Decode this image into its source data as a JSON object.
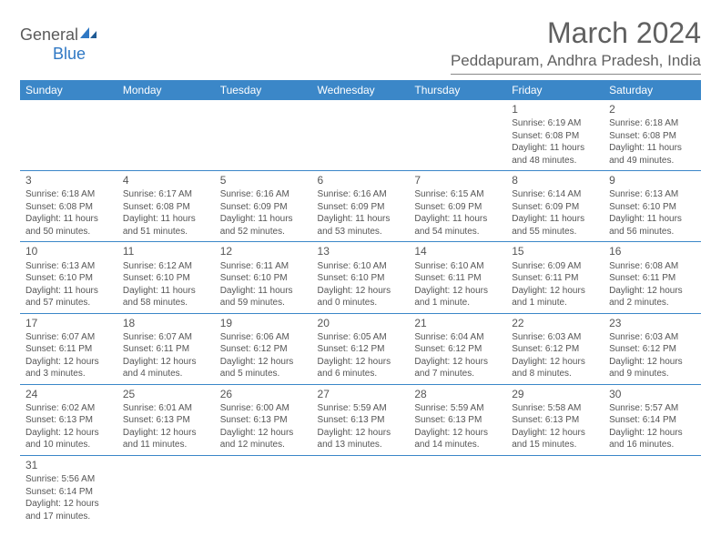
{
  "logo": {
    "text_left": "General",
    "text_right": "Blue"
  },
  "title": "March 2024",
  "location": "Peddapuram, Andhra Pradesh, India",
  "colors": {
    "header_bg": "#3b87c8",
    "header_text": "#ffffff",
    "cell_border": "#3b87c8",
    "text": "#555555",
    "logo_blue": "#2f78c4",
    "background": "#ffffff"
  },
  "day_headers": [
    "Sunday",
    "Monday",
    "Tuesday",
    "Wednesday",
    "Thursday",
    "Friday",
    "Saturday"
  ],
  "weeks": [
    [
      null,
      null,
      null,
      null,
      null,
      {
        "n": "1",
        "sr": "6:19 AM",
        "ss": "6:08 PM",
        "dl": "11 hours and 48 minutes."
      },
      {
        "n": "2",
        "sr": "6:18 AM",
        "ss": "6:08 PM",
        "dl": "11 hours and 49 minutes."
      }
    ],
    [
      {
        "n": "3",
        "sr": "6:18 AM",
        "ss": "6:08 PM",
        "dl": "11 hours and 50 minutes."
      },
      {
        "n": "4",
        "sr": "6:17 AM",
        "ss": "6:08 PM",
        "dl": "11 hours and 51 minutes."
      },
      {
        "n": "5",
        "sr": "6:16 AM",
        "ss": "6:09 PM",
        "dl": "11 hours and 52 minutes."
      },
      {
        "n": "6",
        "sr": "6:16 AM",
        "ss": "6:09 PM",
        "dl": "11 hours and 53 minutes."
      },
      {
        "n": "7",
        "sr": "6:15 AM",
        "ss": "6:09 PM",
        "dl": "11 hours and 54 minutes."
      },
      {
        "n": "8",
        "sr": "6:14 AM",
        "ss": "6:09 PM",
        "dl": "11 hours and 55 minutes."
      },
      {
        "n": "9",
        "sr": "6:13 AM",
        "ss": "6:10 PM",
        "dl": "11 hours and 56 minutes."
      }
    ],
    [
      {
        "n": "10",
        "sr": "6:13 AM",
        "ss": "6:10 PM",
        "dl": "11 hours and 57 minutes."
      },
      {
        "n": "11",
        "sr": "6:12 AM",
        "ss": "6:10 PM",
        "dl": "11 hours and 58 minutes."
      },
      {
        "n": "12",
        "sr": "6:11 AM",
        "ss": "6:10 PM",
        "dl": "11 hours and 59 minutes."
      },
      {
        "n": "13",
        "sr": "6:10 AM",
        "ss": "6:10 PM",
        "dl": "12 hours and 0 minutes."
      },
      {
        "n": "14",
        "sr": "6:10 AM",
        "ss": "6:11 PM",
        "dl": "12 hours and 1 minute."
      },
      {
        "n": "15",
        "sr": "6:09 AM",
        "ss": "6:11 PM",
        "dl": "12 hours and 1 minute."
      },
      {
        "n": "16",
        "sr": "6:08 AM",
        "ss": "6:11 PM",
        "dl": "12 hours and 2 minutes."
      }
    ],
    [
      {
        "n": "17",
        "sr": "6:07 AM",
        "ss": "6:11 PM",
        "dl": "12 hours and 3 minutes."
      },
      {
        "n": "18",
        "sr": "6:07 AM",
        "ss": "6:11 PM",
        "dl": "12 hours and 4 minutes."
      },
      {
        "n": "19",
        "sr": "6:06 AM",
        "ss": "6:12 PM",
        "dl": "12 hours and 5 minutes."
      },
      {
        "n": "20",
        "sr": "6:05 AM",
        "ss": "6:12 PM",
        "dl": "12 hours and 6 minutes."
      },
      {
        "n": "21",
        "sr": "6:04 AM",
        "ss": "6:12 PM",
        "dl": "12 hours and 7 minutes."
      },
      {
        "n": "22",
        "sr": "6:03 AM",
        "ss": "6:12 PM",
        "dl": "12 hours and 8 minutes."
      },
      {
        "n": "23",
        "sr": "6:03 AM",
        "ss": "6:12 PM",
        "dl": "12 hours and 9 minutes."
      }
    ],
    [
      {
        "n": "24",
        "sr": "6:02 AM",
        "ss": "6:13 PM",
        "dl": "12 hours and 10 minutes."
      },
      {
        "n": "25",
        "sr": "6:01 AM",
        "ss": "6:13 PM",
        "dl": "12 hours and 11 minutes."
      },
      {
        "n": "26",
        "sr": "6:00 AM",
        "ss": "6:13 PM",
        "dl": "12 hours and 12 minutes."
      },
      {
        "n": "27",
        "sr": "5:59 AM",
        "ss": "6:13 PM",
        "dl": "12 hours and 13 minutes."
      },
      {
        "n": "28",
        "sr": "5:59 AM",
        "ss": "6:13 PM",
        "dl": "12 hours and 14 minutes."
      },
      {
        "n": "29",
        "sr": "5:58 AM",
        "ss": "6:13 PM",
        "dl": "12 hours and 15 minutes."
      },
      {
        "n": "30",
        "sr": "5:57 AM",
        "ss": "6:14 PM",
        "dl": "12 hours and 16 minutes."
      }
    ],
    [
      {
        "n": "31",
        "sr": "5:56 AM",
        "ss": "6:14 PM",
        "dl": "12 hours and 17 minutes."
      },
      null,
      null,
      null,
      null,
      null,
      null
    ]
  ],
  "labels": {
    "sunrise": "Sunrise:",
    "sunset": "Sunset:",
    "daylight": "Daylight:"
  }
}
